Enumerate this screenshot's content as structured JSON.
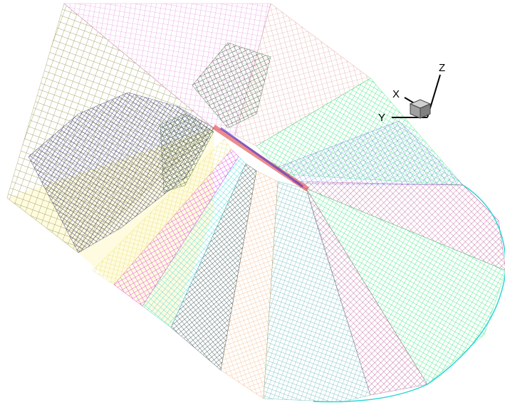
{
  "axis_triad": {
    "x_label": "X",
    "y_label": "Y",
    "z_label": "Z"
  }
}
